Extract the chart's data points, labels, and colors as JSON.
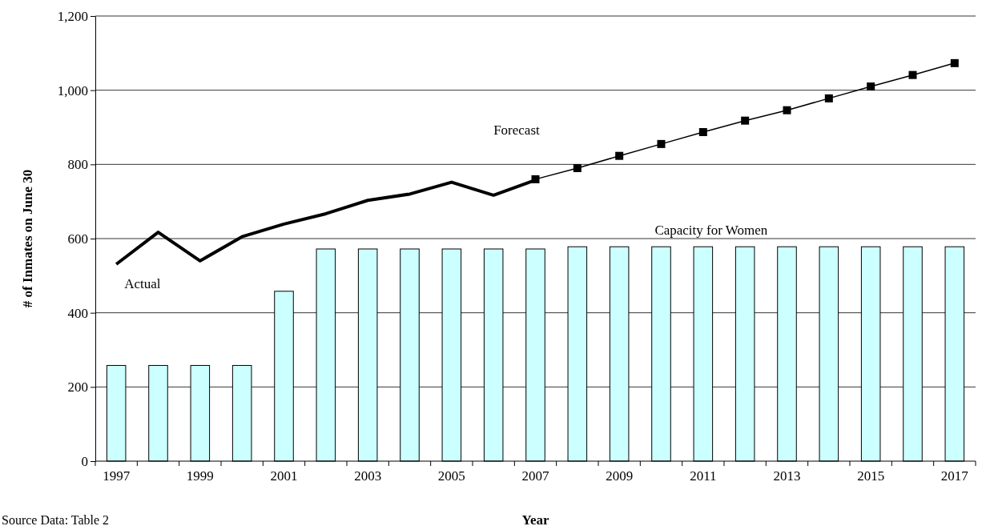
{
  "chart_data": {
    "type": "bar",
    "xlabel": "Year",
    "ylabel": "# of Inmates on June 30",
    "categories": [
      "1997",
      null,
      "1999",
      null,
      "2001",
      null,
      "2003",
      null,
      "2005",
      null,
      "2007",
      null,
      "2009",
      null,
      "2011",
      null,
      "2013",
      null,
      "2015",
      null,
      "2017"
    ],
    "series": [
      {
        "name": "Capacity for Women",
        "color": "#ccffff",
        "values": [
          258,
          258,
          258,
          258,
          458,
          572,
          572,
          572,
          572,
          572,
          572,
          578,
          578,
          578,
          578,
          578,
          578,
          578,
          578,
          578,
          578
        ]
      },
      {
        "name": "Actual",
        "type": "line",
        "color": "#000000",
        "marker": "none",
        "values": [
          531,
          617,
          540,
          605,
          639,
          667,
          703,
          720,
          752,
          717,
          758,
          null,
          null,
          null,
          null,
          null,
          null,
          null,
          null,
          null,
          null
        ]
      },
      {
        "name": "Forecast",
        "type": "line",
        "color": "#000000",
        "marker": "square",
        "values": [
          null,
          null,
          null,
          null,
          null,
          null,
          null,
          null,
          null,
          null,
          760,
          790,
          823,
          855,
          887,
          918,
          946,
          978,
          1010,
          1041,
          1073
        ]
      }
    ],
    "ylim": [
      0,
      1200
    ],
    "yticks": [
      0,
      {
        "value": 200,
        "label": "200"
      },
      {
        "value": 400,
        "label": "400"
      },
      {
        "value": 600,
        "label": "600"
      },
      {
        "value": 800,
        "label": "800"
      },
      {
        "value": 1000,
        "label": "1,000"
      },
      {
        "value": 1200,
        "label": "1,200"
      }
    ],
    "grid": "y",
    "legend": false,
    "annotations": [
      "Source Data: Table 2"
    ]
  }
}
